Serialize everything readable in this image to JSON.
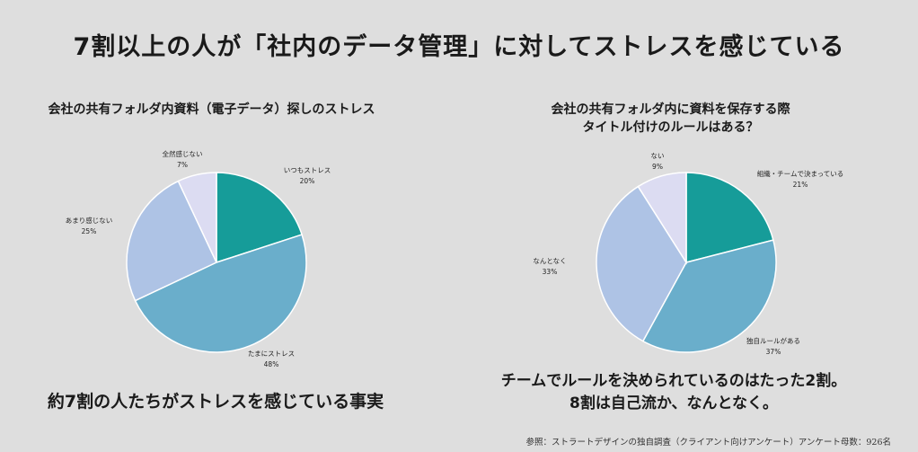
{
  "main_title": "7割以上の人が「社内のデータ管理」に対してストレスを感じている",
  "chart_data": [
    {
      "type": "pie",
      "title": "会社の共有フォルダ内資料（電子データ）探しのストレス",
      "slices": [
        {
          "label": "いつもストレス",
          "value": 20,
          "pct_text": "20%",
          "color": "#169c99"
        },
        {
          "label": "たまにストレス",
          "value": 48,
          "pct_text": "48%",
          "color": "#6aaecb"
        },
        {
          "label": "あまり感じない",
          "value": 25,
          "pct_text": "25%",
          "color": "#aec3e5"
        },
        {
          "label": "全然感じない",
          "value": 7,
          "pct_text": "7%",
          "color": "#dcdcf2"
        }
      ]
    },
    {
      "type": "pie",
      "title_lines": [
        "会社の共有フォルダ内に資料を保存する際",
        "タイトル付けのルールはある？"
      ],
      "slices": [
        {
          "label": "組織・チームで決まっている",
          "value": 21,
          "pct_text": "21%",
          "color": "#169c99"
        },
        {
          "label": "独自ルールがある",
          "value": 37,
          "pct_text": "37%",
          "color": "#6aaecb"
        },
        {
          "label": "なんとなく",
          "value": 33,
          "pct_text": "33%",
          "color": "#aec3e5"
        },
        {
          "label": "ない",
          "value": 9,
          "pct_text": "9%",
          "color": "#dcdcf2"
        }
      ]
    }
  ],
  "caption_left": "約7割の人たちがストレスを感じている事実",
  "caption_right_line1": "チームでルールを決められているのはたった2割。",
  "caption_right_line2": "8割は自己流か、なんとなく。",
  "footnote": "参照：ストラートデザインの独自調査（クライアント向けアンケート）アンケート母数：926名"
}
